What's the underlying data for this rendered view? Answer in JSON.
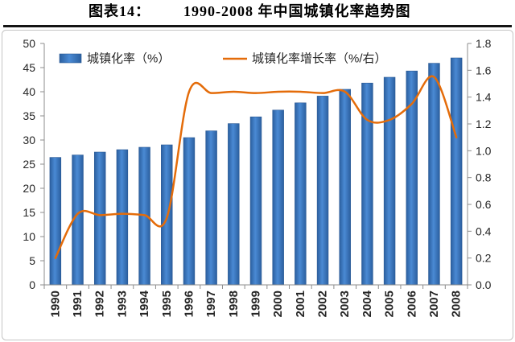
{
  "figure": {
    "label": "图表14："
  },
  "chart_data": {
    "type": "bar",
    "title": "1990-2008 年中国城镇化率趋势图",
    "categories": [
      "1990",
      "1991",
      "1992",
      "1993",
      "1994",
      "1995",
      "1996",
      "1997",
      "1998",
      "1999",
      "2000",
      "2001",
      "2002",
      "2003",
      "2004",
      "2005",
      "2006",
      "2007",
      "2008"
    ],
    "series": [
      {
        "name": "城镇化率（%）",
        "type": "bar",
        "axis": "left",
        "color": "#4a8ad4",
        "values": [
          26.4,
          26.9,
          27.5,
          28.0,
          28.5,
          29.0,
          30.5,
          31.9,
          33.4,
          34.8,
          36.2,
          37.7,
          39.1,
          40.5,
          41.8,
          43.0,
          44.3,
          45.9,
          47.0
        ]
      },
      {
        "name": "城镇化率增长率（%/右）",
        "type": "line",
        "axis": "right",
        "smooth": true,
        "color": "#e46c0a",
        "values": [
          0.2,
          0.53,
          0.52,
          0.53,
          0.52,
          0.5,
          1.44,
          1.43,
          1.44,
          1.43,
          1.44,
          1.44,
          1.43,
          1.44,
          1.23,
          1.23,
          1.35,
          1.55,
          1.1
        ]
      }
    ],
    "ylim": [
      0,
      50
    ],
    "yticks": [
      "0",
      "5",
      "10",
      "15",
      "20",
      "25",
      "30",
      "35",
      "40",
      "45",
      "50"
    ],
    "y2lim": [
      0,
      1.8
    ],
    "y2ticks": [
      "0.0",
      "0.2",
      "0.4",
      "0.6",
      "0.8",
      "1.0",
      "1.2",
      "1.4",
      "1.6",
      "1.8"
    ],
    "grid": false,
    "legend": "top-inside"
  }
}
